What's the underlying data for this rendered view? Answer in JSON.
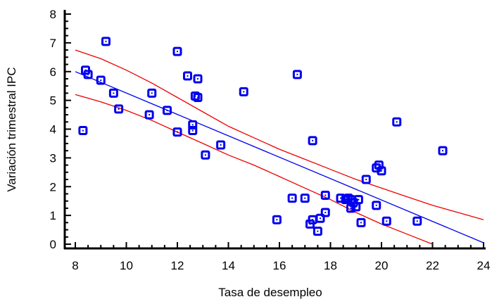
{
  "chart_data": {
    "type": "scatter",
    "title": "",
    "xlabel": "Tasa de desempleo",
    "ylabel": "Variación trimestral IPC",
    "xlim": [
      8,
      24
    ],
    "ylim": [
      0,
      8
    ],
    "xticks": [
      8,
      10,
      12,
      14,
      16,
      18,
      20,
      22,
      24
    ],
    "yticks": [
      0,
      1,
      2,
      3,
      4,
      5,
      6,
      7,
      8
    ],
    "grid": false,
    "legend": "none",
    "colors": {
      "points": "#0000ee",
      "fit_line": "#0000ee",
      "confidence_band": "#ee0000",
      "axis": "#000000"
    },
    "points": [
      {
        "x": 8.3,
        "y": 3.95
      },
      {
        "x": 8.4,
        "y": 6.05
      },
      {
        "x": 8.5,
        "y": 5.9
      },
      {
        "x": 9.0,
        "y": 5.7
      },
      {
        "x": 9.2,
        "y": 7.05
      },
      {
        "x": 9.5,
        "y": 5.25
      },
      {
        "x": 9.7,
        "y": 4.7
      },
      {
        "x": 10.9,
        "y": 4.5
      },
      {
        "x": 11.0,
        "y": 5.25
      },
      {
        "x": 11.6,
        "y": 4.65
      },
      {
        "x": 12.0,
        "y": 6.7
      },
      {
        "x": 12.0,
        "y": 3.9
      },
      {
        "x": 12.4,
        "y": 5.85
      },
      {
        "x": 12.6,
        "y": 4.15
      },
      {
        "x": 12.6,
        "y": 3.95
      },
      {
        "x": 12.7,
        "y": 5.15
      },
      {
        "x": 12.8,
        "y": 5.75
      },
      {
        "x": 12.8,
        "y": 5.1
      },
      {
        "x": 13.1,
        "y": 3.1
      },
      {
        "x": 13.7,
        "y": 3.45
      },
      {
        "x": 14.6,
        "y": 5.3
      },
      {
        "x": 15.9,
        "y": 0.85
      },
      {
        "x": 16.5,
        "y": 1.6
      },
      {
        "x": 16.7,
        "y": 5.9
      },
      {
        "x": 17.0,
        "y": 1.6
      },
      {
        "x": 17.2,
        "y": 0.7
      },
      {
        "x": 17.3,
        "y": 0.85
      },
      {
        "x": 17.3,
        "y": 3.6
      },
      {
        "x": 17.5,
        "y": 0.45
      },
      {
        "x": 17.6,
        "y": 0.9
      },
      {
        "x": 17.8,
        "y": 1.7
      },
      {
        "x": 17.8,
        "y": 1.1
      },
      {
        "x": 18.4,
        "y": 1.6
      },
      {
        "x": 18.6,
        "y": 1.55
      },
      {
        "x": 18.7,
        "y": 1.6
      },
      {
        "x": 18.8,
        "y": 1.55
      },
      {
        "x": 18.8,
        "y": 1.25
      },
      {
        "x": 18.9,
        "y": 1.45
      },
      {
        "x": 19.0,
        "y": 1.3
      },
      {
        "x": 19.1,
        "y": 1.55
      },
      {
        "x": 19.2,
        "y": 0.75
      },
      {
        "x": 19.4,
        "y": 2.25
      },
      {
        "x": 19.8,
        "y": 1.35
      },
      {
        "x": 19.8,
        "y": 2.65
      },
      {
        "x": 19.9,
        "y": 2.75
      },
      {
        "x": 20.0,
        "y": 2.55
      },
      {
        "x": 20.2,
        "y": 0.8
      },
      {
        "x": 20.6,
        "y": 4.25
      },
      {
        "x": 21.4,
        "y": 0.8
      },
      {
        "x": 22.4,
        "y": 3.25
      }
    ],
    "fit_line": [
      {
        "x": 8,
        "y": 6.0
      },
      {
        "x": 24,
        "y": 0.05
      }
    ],
    "upper_band": [
      {
        "x": 8,
        "y": 6.75
      },
      {
        "x": 9,
        "y": 6.45
      },
      {
        "x": 10,
        "y": 6.05
      },
      {
        "x": 11,
        "y": 5.6
      },
      {
        "x": 12,
        "y": 5.1
      },
      {
        "x": 13,
        "y": 4.6
      },
      {
        "x": 14,
        "y": 4.1
      },
      {
        "x": 15,
        "y": 3.7
      },
      {
        "x": 16,
        "y": 3.3
      },
      {
        "x": 17,
        "y": 2.95
      },
      {
        "x": 18,
        "y": 2.6
      },
      {
        "x": 19,
        "y": 2.25
      },
      {
        "x": 20,
        "y": 1.95
      },
      {
        "x": 21,
        "y": 1.65
      },
      {
        "x": 22,
        "y": 1.35
      },
      {
        "x": 23,
        "y": 1.1
      },
      {
        "x": 24,
        "y": 0.85
      }
    ],
    "lower_band": [
      {
        "x": 8,
        "y": 5.2
      },
      {
        "x": 9,
        "y": 4.95
      },
      {
        "x": 10,
        "y": 4.65
      },
      {
        "x": 11,
        "y": 4.3
      },
      {
        "x": 12,
        "y": 3.9
      },
      {
        "x": 13,
        "y": 3.5
      },
      {
        "x": 14,
        "y": 3.1
      },
      {
        "x": 15,
        "y": 2.75
      },
      {
        "x": 16,
        "y": 2.35
      },
      {
        "x": 17,
        "y": 1.95
      },
      {
        "x": 18,
        "y": 1.55
      },
      {
        "x": 19,
        "y": 1.1
      },
      {
        "x": 20,
        "y": 0.7
      },
      {
        "x": 21,
        "y": 0.35
      },
      {
        "x": 22,
        "y": 0.0
      }
    ]
  }
}
